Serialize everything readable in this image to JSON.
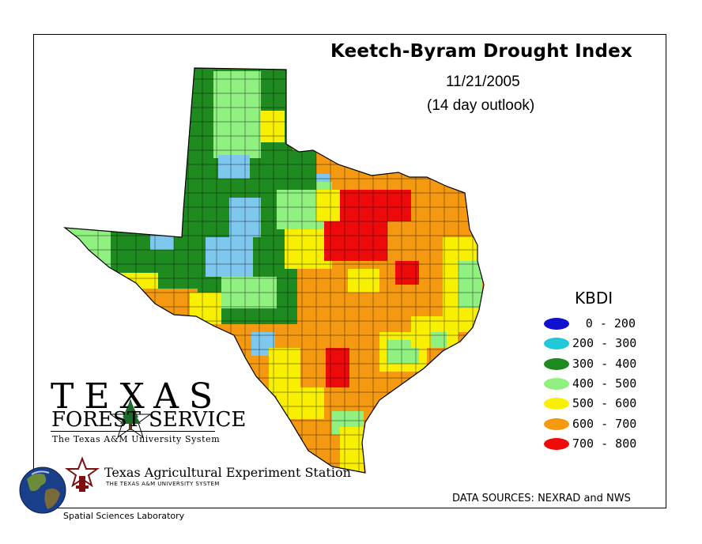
{
  "title": "Keetch-Byram Drought Index",
  "date": "11/21/2005",
  "outlook": "(14 day outlook)",
  "legend": {
    "title": "KBDI",
    "items": [
      {
        "range": "0 - 200",
        "color": "#1010d0"
      },
      {
        "range": "200 - 300",
        "color": "#20c8d8"
      },
      {
        "range": "300 - 400",
        "color": "#1f8a1f"
      },
      {
        "range": "400 - 500",
        "color": "#90f080"
      },
      {
        "range": "500 - 600",
        "color": "#f8f000"
      },
      {
        "range": "600 - 700",
        "color": "#f59a10"
      },
      {
        "range": "700 - 800",
        "color": "#ee0a0a"
      }
    ]
  },
  "region_colors": {
    "panhandle": "#1f8a1f",
    "light_green": "#90f080",
    "light_blue": "#7ec8f0",
    "yellow": "#f8f000",
    "orange": "#f59a10",
    "red": "#ee0a0a"
  },
  "sources": "DATA SOURCES: NEXRAD and NWS",
  "logos": {
    "tfs_word": "TEXAS",
    "tfs_forest": "FOREST",
    "tfs_service": "SERVICE",
    "tfs_sub": "The Texas A&M University System",
    "taes_name": "Texas Agricultural Experiment Station",
    "taes_sub": "THE TEXAS A&M UNIVERSITY SYSTEM"
  },
  "footer": "Spatial Sciences Laboratory"
}
